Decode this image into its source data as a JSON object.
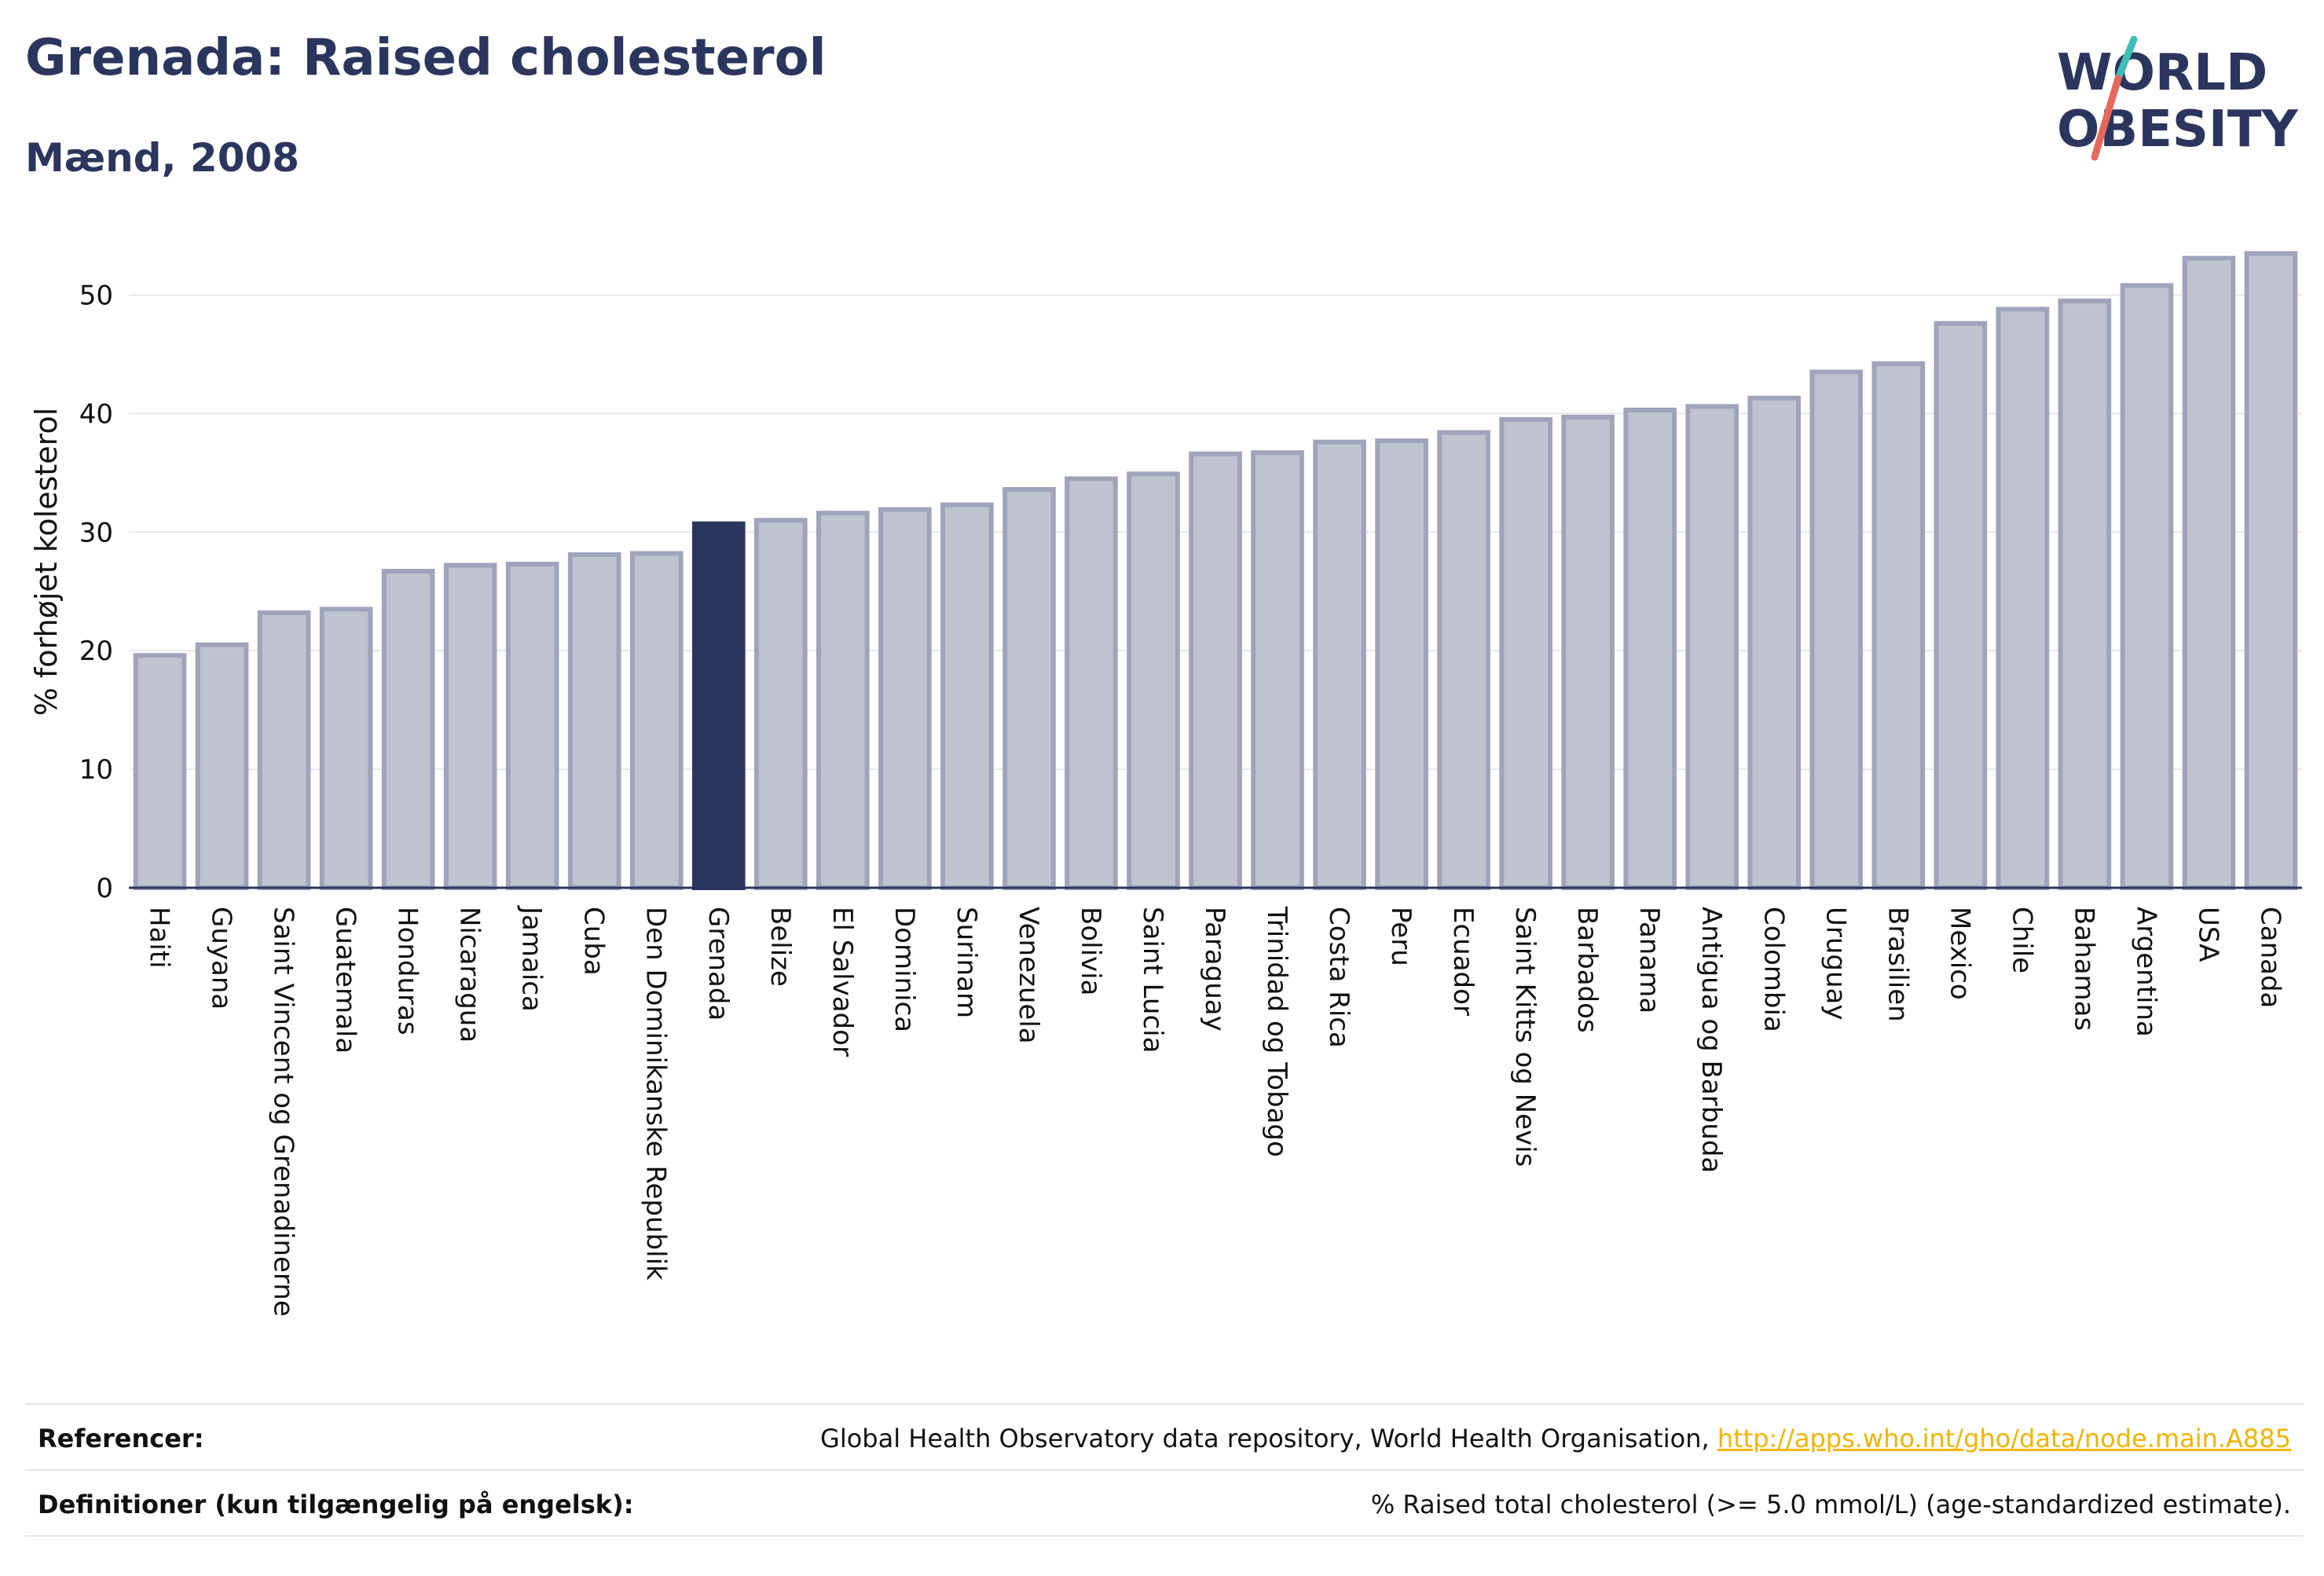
{
  "header": {
    "title": "Grenada: Raised cholesterol",
    "subtitle": "Mænd, 2008"
  },
  "logo": {
    "line1": "WORLD",
    "line2": "OBESITY"
  },
  "chart_data": {
    "type": "bar",
    "ylabel": "% forhøjet kolesterol",
    "ylim": [
      0,
      55
    ],
    "yticks": [
      0,
      10,
      20,
      30,
      40,
      50
    ],
    "grid": true,
    "highlight": "Grenada",
    "colors": {
      "bar": "#bfc2cf",
      "bar_edge": "#9fa4bb",
      "highlight": "#2b365f",
      "grid": "#e6e8ef"
    },
    "categories": [
      "Haiti",
      "Guyana",
      "Saint Vincent og Grenadinerne",
      "Guatemala",
      "Honduras",
      "Nicaragua",
      "Jamaica",
      "Cuba",
      "Den Dominikanske Republik",
      "Grenada",
      "Belize",
      "El Salvador",
      "Dominica",
      "Surinam",
      "Venezuela",
      "Bolivia",
      "Saint Lucia",
      "Paraguay",
      "Trinidad og Tobago",
      "Costa Rica",
      "Peru",
      "Ecuador",
      "Saint Kitts og Nevis",
      "Barbados",
      "Panama",
      "Antigua og Barbuda",
      "Colombia",
      "Uruguay",
      "Brasilien",
      "Mexico",
      "Chile",
      "Bahamas",
      "Argentina",
      "USA",
      "Canada"
    ],
    "values": [
      19.6,
      20.5,
      23.2,
      23.5,
      26.7,
      27.2,
      27.3,
      28.1,
      28.2,
      30.7,
      31.0,
      31.6,
      31.9,
      32.3,
      33.6,
      34.5,
      34.9,
      36.6,
      36.7,
      37.6,
      37.7,
      38.4,
      39.5,
      39.7,
      40.3,
      40.6,
      41.3,
      43.5,
      44.2,
      47.6,
      48.8,
      49.5,
      50.8,
      53.1,
      53.5
    ]
  },
  "footer": {
    "references_label": "Referencer:",
    "references_text": "Global Health Observatory data repository, World Health Organisation, ",
    "references_link": "http://apps.who.int/gho/data/node.main.A885",
    "definitions_label": "Definitioner (kun tilgængelig på engelsk):",
    "definitions_text": "% Raised total cholesterol (>= 5.0 mmol/L) (age-standardized estimate)."
  }
}
